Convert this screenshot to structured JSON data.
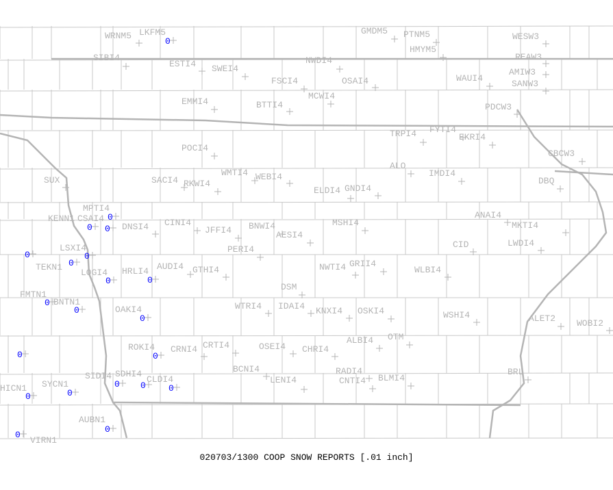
{
  "title": "020703/1300 COOP SNOW REPORTS [.01 inch]",
  "colors": {
    "label": "#b4b4b4",
    "value": "#0000ff",
    "boundary": "#c8c8c8"
  },
  "stations": [
    {
      "name": "WRNM5",
      "value": null
    },
    {
      "name": "LKFM5",
      "value": "0"
    },
    {
      "name": "GMDM5",
      "value": null
    },
    {
      "name": "PTNM5",
      "value": null
    },
    {
      "name": "HMYM5",
      "value": null
    },
    {
      "name": "WESW3",
      "value": null
    },
    {
      "name": "REAW3",
      "value": null
    },
    {
      "name": "SIBI4",
      "value": null
    },
    {
      "name": "ESTI4",
      "value": null
    },
    {
      "name": "SWEI4",
      "value": null
    },
    {
      "name": "NWDI4",
      "value": null
    },
    {
      "name": "FSCI4",
      "value": null
    },
    {
      "name": "OSAI4",
      "value": null
    },
    {
      "name": "MCWI4",
      "value": null
    },
    {
      "name": "WAUI4",
      "value": null
    },
    {
      "name": "AMIW3",
      "value": null
    },
    {
      "name": "SANW3",
      "value": null
    },
    {
      "name": "EMMI4",
      "value": null
    },
    {
      "name": "BTTI4",
      "value": null
    },
    {
      "name": "PDCW3",
      "value": null
    },
    {
      "name": "TRPI4",
      "value": null
    },
    {
      "name": "FYTI4",
      "value": null
    },
    {
      "name": "EKRI4",
      "value": null
    },
    {
      "name": "POCI4",
      "value": null
    },
    {
      "name": "CBCW3",
      "value": null
    },
    {
      "name": "ALO",
      "value": null
    },
    {
      "name": "IMDI4",
      "value": null
    },
    {
      "name": "SUX",
      "value": null
    },
    {
      "name": "SACI4",
      "value": null
    },
    {
      "name": "RKWI4",
      "value": null
    },
    {
      "name": "WMTI4",
      "value": null
    },
    {
      "name": "WEBI4",
      "value": null
    },
    {
      "name": "ELDI4",
      "value": null
    },
    {
      "name": "GNDI4",
      "value": null
    },
    {
      "name": "DBQ",
      "value": null
    },
    {
      "name": "MPTI4",
      "value": "0"
    },
    {
      "name": "KENN1",
      "value": "0"
    },
    {
      "name": "CSAI4",
      "value": "0"
    },
    {
      "name": "DNSI4",
      "value": null
    },
    {
      "name": "CINI4",
      "value": null
    },
    {
      "name": "ANAI4",
      "value": null
    },
    {
      "name": "MKTI4",
      "value": null
    },
    {
      "name": "JFFI4",
      "value": null
    },
    {
      "name": "BNWI4",
      "value": null
    },
    {
      "name": "AESI4",
      "value": null
    },
    {
      "name": "MSHI4",
      "value": null
    },
    {
      "name": "PERI4",
      "value": null
    },
    {
      "name": "LSXI4",
      "value": "0"
    },
    {
      "name": "",
      "value": "0"
    },
    {
      "name": "TEKN1",
      "value": "0"
    },
    {
      "name": "CID",
      "value": null
    },
    {
      "name": "LWDI4",
      "value": null
    },
    {
      "name": "LOGI4",
      "value": "0"
    },
    {
      "name": "HRLI4",
      "value": "0"
    },
    {
      "name": "AUDI4",
      "value": null
    },
    {
      "name": "GTHI4",
      "value": null
    },
    {
      "name": "NWTI4",
      "value": null
    },
    {
      "name": "GRII4",
      "value": null
    },
    {
      "name": "WLBI4",
      "value": null
    },
    {
      "name": "DSM",
      "value": null
    },
    {
      "name": "FMTN1",
      "value": "0"
    },
    {
      "name": "BNTN1",
      "value": "0"
    },
    {
      "name": "OAKI4",
      "value": "0"
    },
    {
      "name": "WTRI4",
      "value": null
    },
    {
      "name": "IDAI4",
      "value": null
    },
    {
      "name": "KNXI4",
      "value": null
    },
    {
      "name": "OSKI4",
      "value": null
    },
    {
      "name": "WSHI4",
      "value": null
    },
    {
      "name": "ALET2",
      "value": null
    },
    {
      "name": "WOBI2",
      "value": null
    },
    {
      "name": "ROKI4",
      "value": "0"
    },
    {
      "name": "CRNI4",
      "value": null
    },
    {
      "name": "CRTI4",
      "value": null
    },
    {
      "name": "OSEI4",
      "value": null
    },
    {
      "name": "CHRI4",
      "value": null
    },
    {
      "name": "ALBI4",
      "value": null
    },
    {
      "name": "OTM",
      "value": null
    },
    {
      "name": "BCNI4",
      "value": null
    },
    {
      "name": "RADI4",
      "value": null
    },
    {
      "name": "LENI4",
      "value": null
    },
    {
      "name": "CNTI4",
      "value": null
    },
    {
      "name": "BLMI4",
      "value": null
    },
    {
      "name": "BRL",
      "value": null
    },
    {
      "name": "SIDI4",
      "value": "0"
    },
    {
      "name": "SDHI4",
      "value": "0"
    },
    {
      "name": "CLDI4",
      "value": "0"
    },
    {
      "name": "HICN1",
      "value": "0"
    },
    {
      "name": "SYCN1",
      "value": "0"
    },
    {
      "name": "",
      "value": "0"
    },
    {
      "name": "AUBN1",
      "value": "0"
    },
    {
      "name": "VIRN1",
      "value": "0"
    }
  ]
}
